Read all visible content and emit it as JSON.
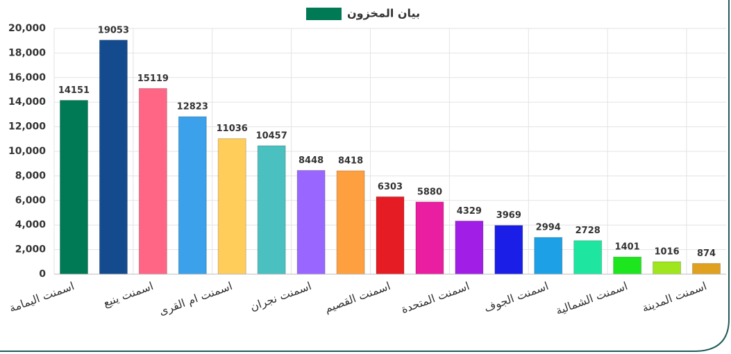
{
  "chart_data": {
    "type": "bar",
    "legend": "بيان المخزون",
    "legend_color": "#007a55",
    "categories": [
      "اسمنت اليمامة",
      null,
      "اسمنت ينبع",
      null,
      "اسمنت ام القرى",
      null,
      "اسمنت نجران",
      null,
      "اسمنت القصيم",
      null,
      "اسمنت المتحدة",
      null,
      "اسمنت الجوف",
      null,
      "اسمنت الشمالية",
      null,
      "اسمنت المدينة"
    ],
    "values": [
      14151,
      19053,
      15119,
      12823,
      11036,
      10457,
      8448,
      8418,
      6303,
      5880,
      4329,
      3969,
      2994,
      2728,
      1401,
      1016,
      874
    ],
    "colors": [
      "#007a55",
      "#134b8e",
      "#ff6686",
      "#3ba1ea",
      "#ffcd5a",
      "#4bc0c0",
      "#9966ff",
      "#ffa040",
      "#e51c23",
      "#e91ea0",
      "#a01ee6",
      "#1a1ee6",
      "#1ea0e6",
      "#1ee6a0",
      "#1ee61e",
      "#a0e61e",
      "#e0a020"
    ],
    "ylim": [
      0,
      20000
    ],
    "yticks": [
      0,
      {
        "value": 2000,
        "label": "2,000"
      },
      {
        "value": 4000,
        "label": "4,000"
      },
      {
        "value": 6000,
        "label": "6,000"
      },
      {
        "value": 8000,
        "label": "8,000"
      },
      {
        "value": 10000,
        "label": "10,000"
      },
      {
        "value": 12000,
        "label": "12,000"
      },
      {
        "value": 14000,
        "label": "14,000"
      },
      {
        "value": 16000,
        "label": "16,000"
      },
      {
        "value": 18000,
        "label": "18,000"
      },
      {
        "value": 20000,
        "label": "20,000"
      }
    ],
    "grid": true
  }
}
